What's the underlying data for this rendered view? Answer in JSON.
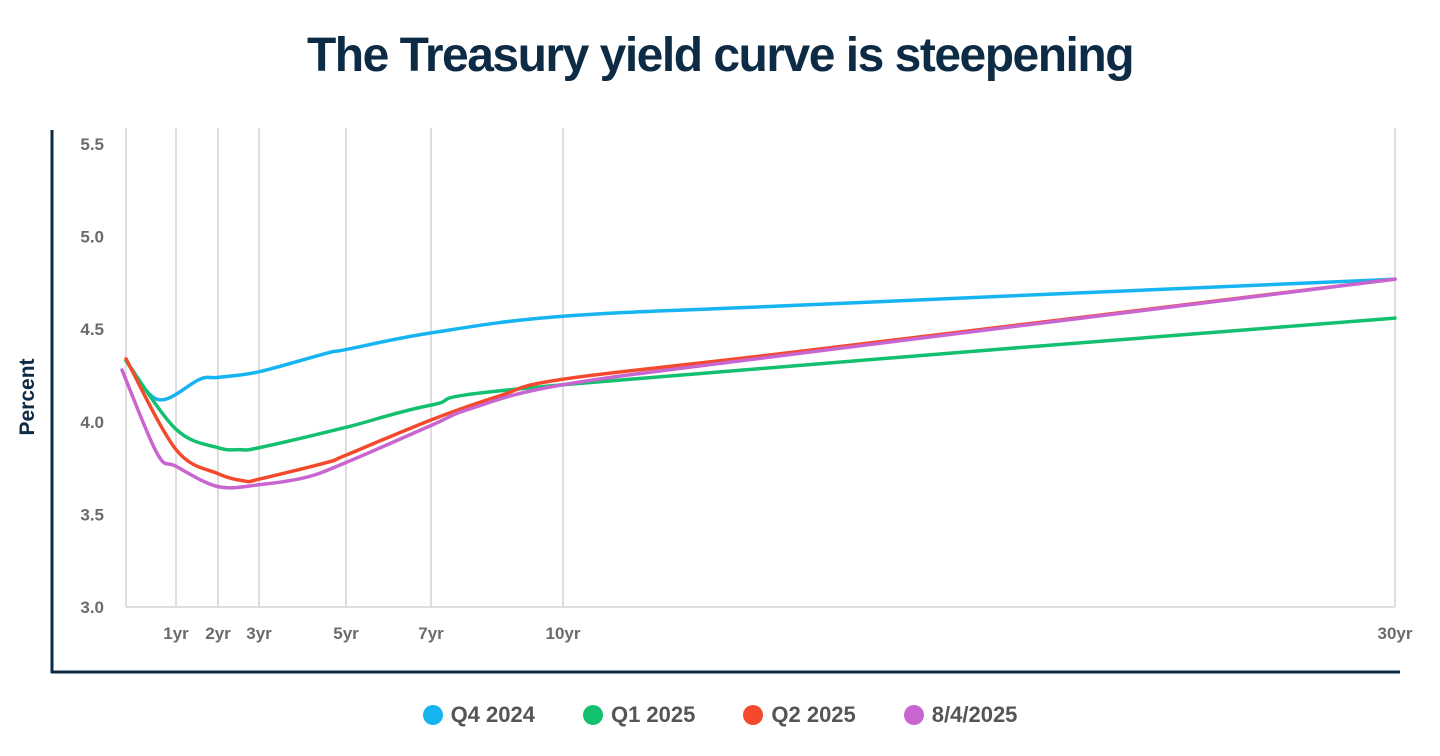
{
  "chart_data": {
    "type": "line",
    "title": "The Treasury yield curve is steepening",
    "ylabel": "Percent",
    "xlabel": "",
    "ylim": [
      3.0,
      5.5
    ],
    "yticks": [
      "3.0",
      "3.5",
      "4.0",
      "4.5",
      "5.0",
      "5.5"
    ],
    "xticks": [
      {
        "value": 1,
        "label": "1yr"
      },
      {
        "value": 2,
        "label": "2yr"
      },
      {
        "value": 3,
        "label": "3yr"
      },
      {
        "value": 5,
        "label": "5yr"
      },
      {
        "value": 7,
        "label": "7yr"
      },
      {
        "value": 10,
        "label": "10yr"
      },
      {
        "value": 30,
        "label": "30yr"
      }
    ],
    "grid": "vertical at maturities",
    "legend_position": "bottom",
    "series": [
      {
        "name": "Q4 2024",
        "color": "#16b5f1",
        "x": [
          0,
          0.64,
          1.57,
          2,
          3,
          4.55,
          5,
          7,
          10,
          15.7,
          30
        ],
        "y": [
          4.33,
          4.12,
          4.23,
          4.24,
          4.27,
          4.37,
          4.39,
          4.48,
          4.57,
          4.63,
          4.77
        ]
      },
      {
        "name": "Q1 2025",
        "color": "#13c06f",
        "x": [
          0,
          1,
          2,
          2.54,
          3,
          5,
          7,
          10,
          30
        ],
        "y": [
          4.33,
          3.96,
          3.86,
          3.85,
          3.86,
          3.97,
          4.09,
          4.2,
          4.56
        ]
      },
      {
        "name": "Q2 2025",
        "color": "#f4492c",
        "x": [
          0,
          1,
          2,
          2.66,
          3,
          4.55,
          5,
          7,
          8.56,
          10,
          15.7,
          30
        ],
        "y": [
          4.34,
          3.85,
          3.72,
          3.68,
          3.69,
          3.78,
          3.82,
          4.01,
          4.14,
          4.23,
          4.38,
          4.77
        ]
      },
      {
        "name": "8/4/2025",
        "color": "#c865d0",
        "x": [
          0,
          0.62,
          1,
          2,
          3,
          4.08,
          5,
          7,
          7.89,
          10,
          15.7,
          30
        ],
        "y": [
          4.28,
          3.83,
          3.76,
          3.65,
          3.66,
          3.7,
          3.78,
          3.98,
          4.07,
          4.2,
          4.37,
          4.77
        ]
      }
    ]
  }
}
